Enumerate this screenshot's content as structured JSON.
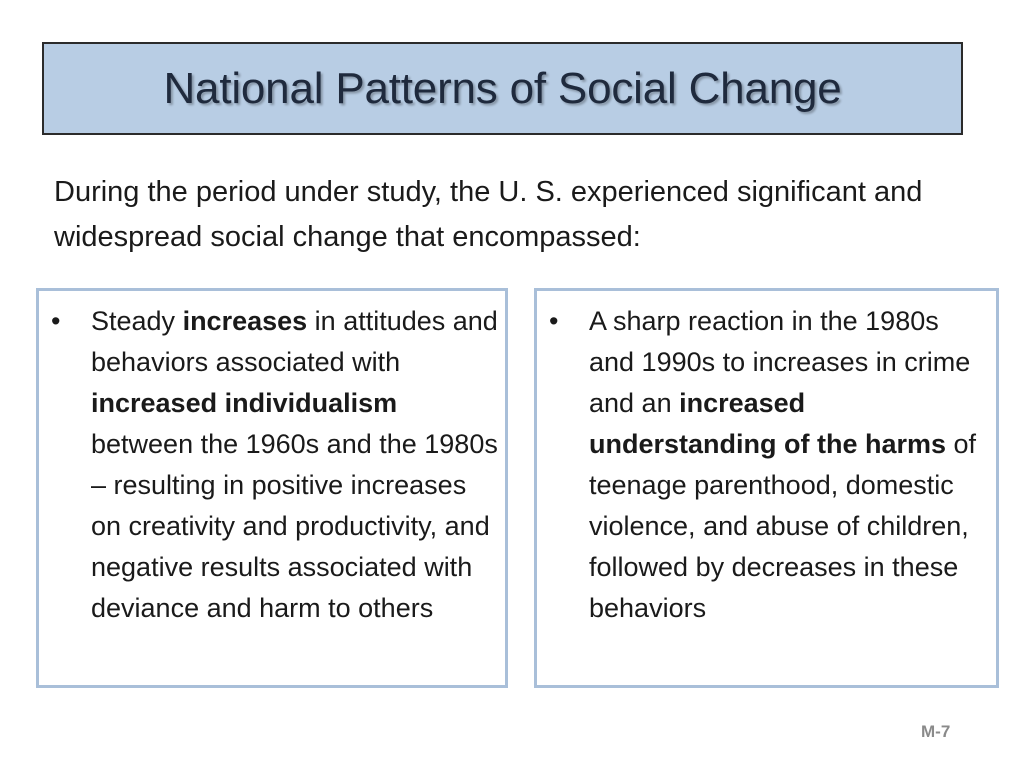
{
  "slide": {
    "title": "National Patterns of Social Change",
    "intro": "During the period under study, the U. S. experienced significant and widespread social change that encompassed:",
    "page_number": "M-7"
  },
  "left_panel": {
    "bullet": "•",
    "t1": "Steady ",
    "b1": "increases",
    "t2": " in attitudes and behaviors associated with ",
    "b2": "increased individualism",
    "t3": " between the 1960s and the 1980s – resulting in positive increases on creativity and productivity, and negative results associated with deviance and harm to others"
  },
  "right_panel": {
    "bullet": "•",
    "t1": "A sharp reaction in the 1980s and 1990s to increases in crime and an ",
    "b1": "increased understanding of the harms",
    "t2": " of teenage parenthood, domestic violence, and abuse of children, followed by decreases in these behaviors"
  },
  "colors": {
    "title_fill": "#b8cde4",
    "panel_border": "#a9bfd9"
  }
}
